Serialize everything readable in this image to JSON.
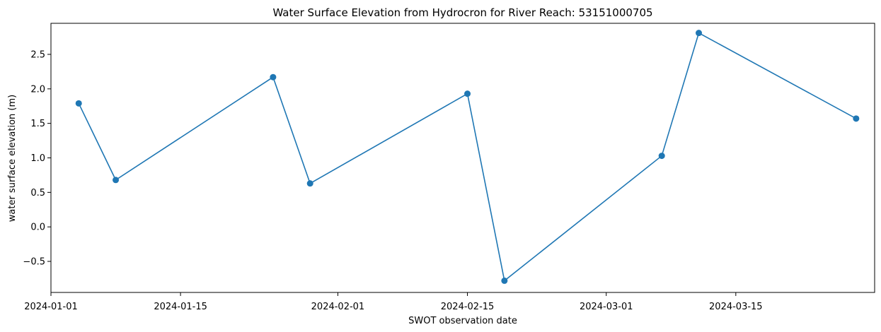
{
  "chart_data": {
    "type": "line",
    "title": "Water Surface Elevation from Hydrocron for River Reach: 53151000705",
    "xlabel": "SWOT observation date",
    "ylabel": "water surface elevation (m)",
    "x_is_date": true,
    "xlim": [
      "2024-01-01",
      "2024-03-30"
    ],
    "ylim": [
      -0.95,
      2.95
    ],
    "x_ticks": [
      {
        "label": "2024-01-01",
        "date": "2024-01-01"
      },
      {
        "label": "2024-01-15",
        "date": "2024-01-15"
      },
      {
        "label": "2024-02-01",
        "date": "2024-02-01"
      },
      {
        "label": "2024-02-15",
        "date": "2024-02-15"
      },
      {
        "label": "2024-03-01",
        "date": "2024-03-01"
      },
      {
        "label": "2024-03-15",
        "date": "2024-03-15"
      }
    ],
    "y_ticks": [
      {
        "label": "−0.5",
        "value": -0.5
      },
      {
        "label": "0.0",
        "value": 0.0
      },
      {
        "label": "0.5",
        "value": 0.5
      },
      {
        "label": "1.0",
        "value": 1.0
      },
      {
        "label": "1.5",
        "value": 1.5
      },
      {
        "label": "2.0",
        "value": 2.0
      },
      {
        "label": "2.5",
        "value": 2.5
      }
    ],
    "grid": false,
    "series": [
      {
        "color": "#1f77b4",
        "marker": "circle",
        "x": [
          "2024-01-04",
          "2024-01-08",
          "2024-01-25",
          "2024-01-29",
          "2024-02-15",
          "2024-02-19",
          "2024-03-07",
          "2024-03-11",
          "2024-03-28"
        ],
        "y": [
          1.79,
          0.68,
          2.17,
          0.63,
          1.93,
          -0.78,
          1.03,
          2.81,
          1.57
        ]
      }
    ]
  }
}
